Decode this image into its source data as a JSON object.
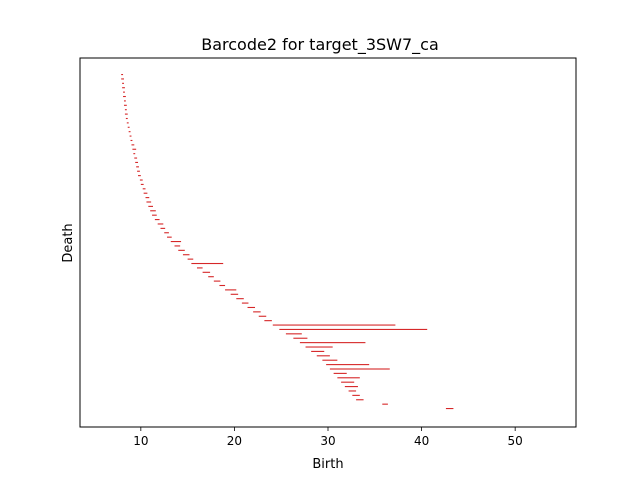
{
  "chart_data": {
    "type": "barcode",
    "title": "Barcode2 for target_3SW7_ca",
    "xlabel": "Birth",
    "ylabel": "Death",
    "xlim": [
      3.5,
      56.5
    ],
    "xticks": [
      10,
      20,
      30,
      40,
      50
    ],
    "xtick_labels": [
      "10",
      "20",
      "30",
      "40",
      "50"
    ],
    "yticks": [],
    "bar_color": "#d62728",
    "bars": [
      [
        7.9,
        8.1
      ],
      [
        7.9,
        8.2
      ],
      [
        8.0,
        8.2
      ],
      [
        8.0,
        8.3
      ],
      [
        8.1,
        8.3
      ],
      [
        8.1,
        8.4
      ],
      [
        8.2,
        8.4
      ],
      [
        8.2,
        8.5
      ],
      [
        8.3,
        8.5
      ],
      [
        8.3,
        8.6
      ],
      [
        8.4,
        8.6
      ],
      [
        8.5,
        8.7
      ],
      [
        8.6,
        8.8
      ],
      [
        8.7,
        8.9
      ],
      [
        8.8,
        9.0
      ],
      [
        8.9,
        9.1
      ],
      [
        9.0,
        9.3
      ],
      [
        9.1,
        9.5
      ],
      [
        9.2,
        9.4
      ],
      [
        9.3,
        9.6
      ],
      [
        9.4,
        9.7
      ],
      [
        9.5,
        9.8
      ],
      [
        9.6,
        9.9
      ],
      [
        9.7,
        10.0
      ],
      [
        9.9,
        10.2
      ],
      [
        10.0,
        10.3
      ],
      [
        10.2,
        10.5
      ],
      [
        10.3,
        10.7
      ],
      [
        10.5,
        10.9
      ],
      [
        10.6,
        11.1
      ],
      [
        10.8,
        11.3
      ],
      [
        11.0,
        11.6
      ],
      [
        11.2,
        11.7
      ],
      [
        11.5,
        12.0
      ],
      [
        11.8,
        12.4
      ],
      [
        12.1,
        12.6
      ],
      [
        12.5,
        13.0
      ],
      [
        12.8,
        13.3
      ],
      [
        13.2,
        14.3
      ],
      [
        13.6,
        14.2
      ],
      [
        14.0,
        14.7
      ],
      [
        14.5,
        15.2
      ],
      [
        15.0,
        15.6
      ],
      [
        15.4,
        18.8
      ],
      [
        16.0,
        16.6
      ],
      [
        16.6,
        17.4
      ],
      [
        17.2,
        17.8
      ],
      [
        17.8,
        18.5
      ],
      [
        18.4,
        19.0
      ],
      [
        19.0,
        20.2
      ],
      [
        19.6,
        20.4
      ],
      [
        20.2,
        21.0
      ],
      [
        20.8,
        21.5
      ],
      [
        21.4,
        22.2
      ],
      [
        22.0,
        22.8
      ],
      [
        22.6,
        23.4
      ],
      [
        23.2,
        24.0
      ],
      [
        24.1,
        37.2
      ],
      [
        24.8,
        40.6
      ],
      [
        25.5,
        27.2
      ],
      [
        26.3,
        27.8
      ],
      [
        27.0,
        34.0
      ],
      [
        27.6,
        30.5
      ],
      [
        28.2,
        29.6
      ],
      [
        28.8,
        30.2
      ],
      [
        29.4,
        31.0
      ],
      [
        29.8,
        34.4
      ],
      [
        30.2,
        36.6
      ],
      [
        30.6,
        32.0
      ],
      [
        31.0,
        33.4
      ],
      [
        31.4,
        32.8
      ],
      [
        31.8,
        33.2
      ],
      [
        32.2,
        33.0
      ],
      [
        32.6,
        33.4
      ],
      [
        33.0,
        33.8
      ],
      [
        35.8,
        36.4
      ],
      [
        42.6,
        43.4
      ]
    ]
  }
}
